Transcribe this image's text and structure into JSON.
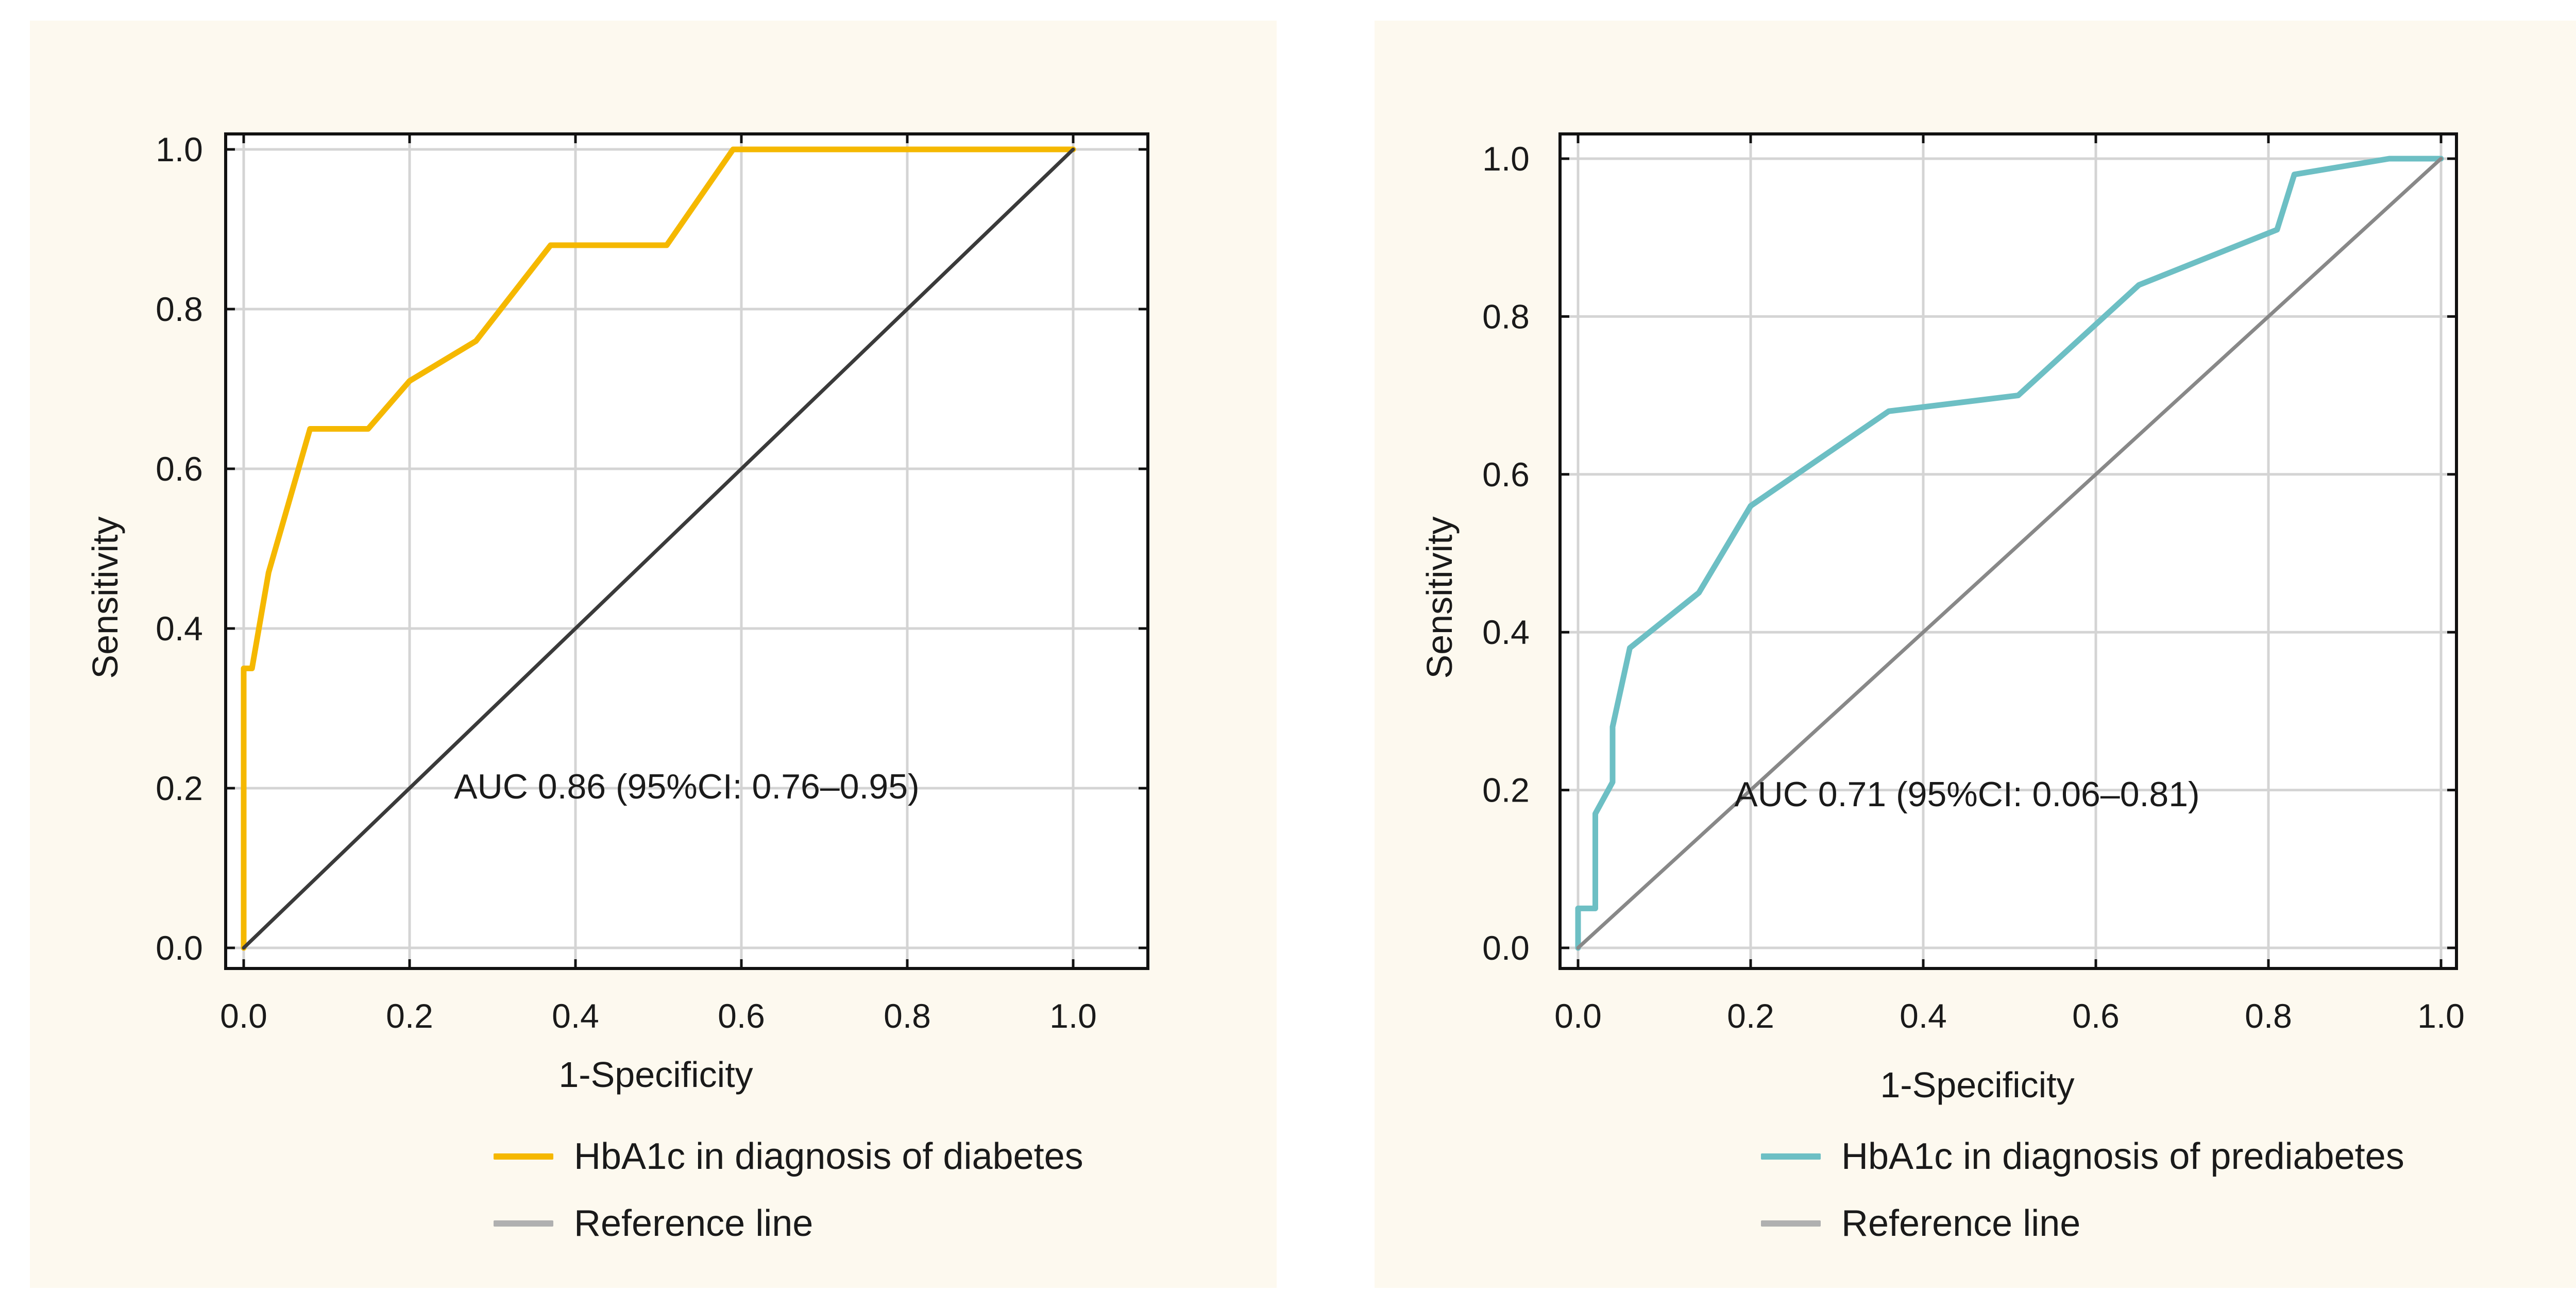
{
  "chart_data": [
    {
      "type": "line",
      "xlabel": "1-Specificity",
      "ylabel": "Sensitivity",
      "xlim": [
        0,
        1
      ],
      "ylim": [
        0,
        1
      ],
      "xticks": [
        "0.0",
        "0.2",
        "0.4",
        "0.6",
        "0.8",
        "1.0"
      ],
      "yticks": [
        "0.0",
        "0.2",
        "0.4",
        "0.6",
        "0.8",
        "1.0"
      ],
      "grid": true,
      "legend_position": "bottom",
      "annotation": "AUC 0.86 (95%CI: 0.76–0.95)",
      "series": [
        {
          "name": "HbA1c in diagnosis of diabetes",
          "color": "#f5b800",
          "x": [
            0.0,
            0.0,
            0.01,
            0.03,
            0.08,
            0.15,
            0.2,
            0.28,
            0.37,
            0.51,
            0.59,
            1.0
          ],
          "y": [
            0.0,
            0.35,
            0.35,
            0.47,
            0.65,
            0.65,
            0.71,
            0.76,
            0.88,
            0.88,
            1.0,
            1.0
          ]
        },
        {
          "name": "Reference line",
          "color": "#3a3a3a",
          "x": [
            0,
            1
          ],
          "y": [
            0,
            1
          ]
        }
      ]
    },
    {
      "type": "line",
      "xlabel": "1-Specificity",
      "ylabel": "Sensitivity",
      "xlim": [
        0,
        1
      ],
      "ylim": [
        0,
        1
      ],
      "xticks": [
        "0.0",
        "0.2",
        "0.4",
        "0.6",
        "0.8",
        "1.0"
      ],
      "yticks": [
        "0.0",
        "0.2",
        "0.4",
        "0.6",
        "0.8",
        "1.0"
      ],
      "grid": true,
      "legend_position": "bottom",
      "annotation": "AUC 0.71 (95%CI: 0.06–0.81)",
      "series": [
        {
          "name": "HbA1c in diagnosis of prediabetes",
          "color": "#6dbfc4",
          "x": [
            0.0,
            0.0,
            0.02,
            0.02,
            0.04,
            0.04,
            0.06,
            0.14,
            0.2,
            0.36,
            0.51,
            0.65,
            0.81,
            0.83,
            0.94,
            1.0
          ],
          "y": [
            0.0,
            0.05,
            0.05,
            0.17,
            0.21,
            0.28,
            0.38,
            0.45,
            0.56,
            0.68,
            0.7,
            0.84,
            0.91,
            0.98,
            1.0,
            1.0
          ]
        },
        {
          "name": "Reference line",
          "color": "#888888",
          "x": [
            0,
            1
          ],
          "y": [
            0,
            1
          ]
        }
      ]
    }
  ]
}
